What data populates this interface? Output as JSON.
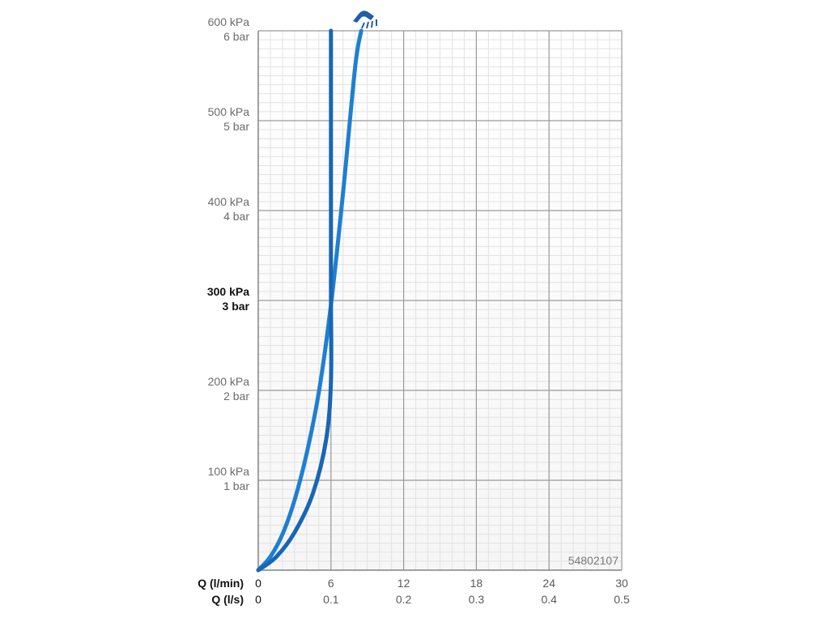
{
  "chart_data": {
    "type": "line",
    "product_code": "54802107",
    "y_ticks": [
      {
        "kpa": "100 kPa",
        "bar": "1 bar",
        "value": 1,
        "bold": false
      },
      {
        "kpa": "200 kPa",
        "bar": "2 bar",
        "value": 2,
        "bold": false
      },
      {
        "kpa": "300 kPa",
        "bar": "3 bar",
        "value": 3,
        "bold": true
      },
      {
        "kpa": "400 kPa",
        "bar": "4 bar",
        "value": 4,
        "bold": false
      },
      {
        "kpa": "500 kPa",
        "bar": "5 bar",
        "value": 5,
        "bold": false
      },
      {
        "kpa": "600 kPa",
        "bar": "6 bar",
        "value": 6,
        "bold": false
      }
    ],
    "x_axis_labels": {
      "lmin": "Q (l/min)",
      "ls": "Q (l/s)"
    },
    "x_ticks": [
      {
        "lmin": "0",
        "ls": "0",
        "value": 0
      },
      {
        "lmin": "6",
        "ls": "0.1",
        "value": 6
      },
      {
        "lmin": "12",
        "ls": "0.2",
        "value": 12
      },
      {
        "lmin": "18",
        "ls": "0.3",
        "value": 18
      },
      {
        "lmin": "24",
        "ls": "0.4",
        "value": 24
      },
      {
        "lmin": "30",
        "ls": "0.5",
        "value": 30
      }
    ],
    "xlim": [
      0,
      30
    ],
    "ylim": [
      0,
      6
    ],
    "grid": true,
    "series": [
      {
        "color": "#1f7fd0",
        "points": [
          [
            0,
            0
          ],
          [
            1,
            0.15
          ],
          [
            2,
            0.4
          ],
          [
            3,
            0.78
          ],
          [
            4,
            1.3
          ],
          [
            5,
            1.98
          ],
          [
            6,
            2.95
          ],
          [
            7,
            4.2
          ],
          [
            8,
            5.6
          ],
          [
            8.5,
            6.0
          ]
        ]
      },
      {
        "color": "#1866b4",
        "points": [
          [
            0,
            0
          ],
          [
            1.5,
            0.15
          ],
          [
            3,
            0.42
          ],
          [
            4.5,
            0.85
          ],
          [
            5.6,
            1.45
          ],
          [
            6,
            2.1
          ],
          [
            6,
            3
          ],
          [
            6,
            4
          ],
          [
            6,
            5
          ],
          [
            6,
            6
          ]
        ]
      }
    ],
    "icon_name": "shower-head-icon",
    "icon_color": "#1f5ea8"
  }
}
